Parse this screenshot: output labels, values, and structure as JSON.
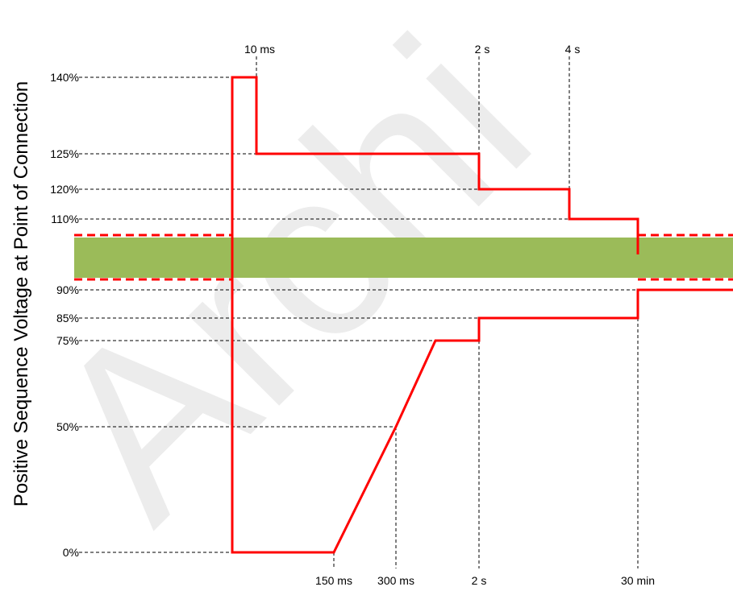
{
  "chart_data": {
    "type": "line",
    "ylabel": "Positive Sequence Voltage  at  Point of Connection",
    "watermark": "Archi",
    "y_ticks": [
      {
        "label": "140%",
        "value": 140
      },
      {
        "label": "125%",
        "value": 125
      },
      {
        "label": "120%",
        "value": 120
      },
      {
        "label": "110%",
        "value": 110
      },
      {
        "label": "90%",
        "value": 90
      },
      {
        "label": "85%",
        "value": 85
      },
      {
        "label": "75%",
        "value": 75
      },
      {
        "label": "50%",
        "value": 50
      },
      {
        "label": "0%",
        "value": 0
      }
    ],
    "x_ticks_top": [
      {
        "label": "10 ms",
        "t": 0.01
      },
      {
        "label": "2 s",
        "t": 2
      },
      {
        "label": "4 s",
        "t": 4
      }
    ],
    "x_ticks_bottom": [
      {
        "label": "150 ms",
        "t": 0.15
      },
      {
        "label": "300 ms",
        "t": 0.3
      },
      {
        "label": "2 s",
        "t": 2
      },
      {
        "label": "30 min",
        "t": 1800
      }
    ],
    "normal_band": {
      "lower": 90,
      "upper": 110
    },
    "series": [
      {
        "points": [
          [
            0,
            100
          ],
          [
            0,
            140
          ],
          [
            0.01,
            140
          ],
          [
            0.01,
            125
          ],
          [
            2,
            125
          ],
          [
            2,
            120
          ],
          [
            4,
            120
          ],
          [
            4,
            110
          ],
          [
            1800,
            110
          ],
          [
            1800,
            100
          ]
        ]
      },
      {
        "points": [
          [
            0,
            100
          ],
          [
            0,
            0
          ],
          [
            0.15,
            0
          ],
          [
            0.3,
            50
          ],
          [
            0.45,
            75
          ],
          [
            2,
            75
          ],
          [
            2,
            85
          ],
          [
            1800,
            85
          ],
          [
            1800,
            90
          ],
          [
            2000,
            90
          ]
        ]
      }
    ],
    "colors": {
      "curve": "#ff0000",
      "band": "#9bbb59",
      "guide": "#000000"
    }
  }
}
